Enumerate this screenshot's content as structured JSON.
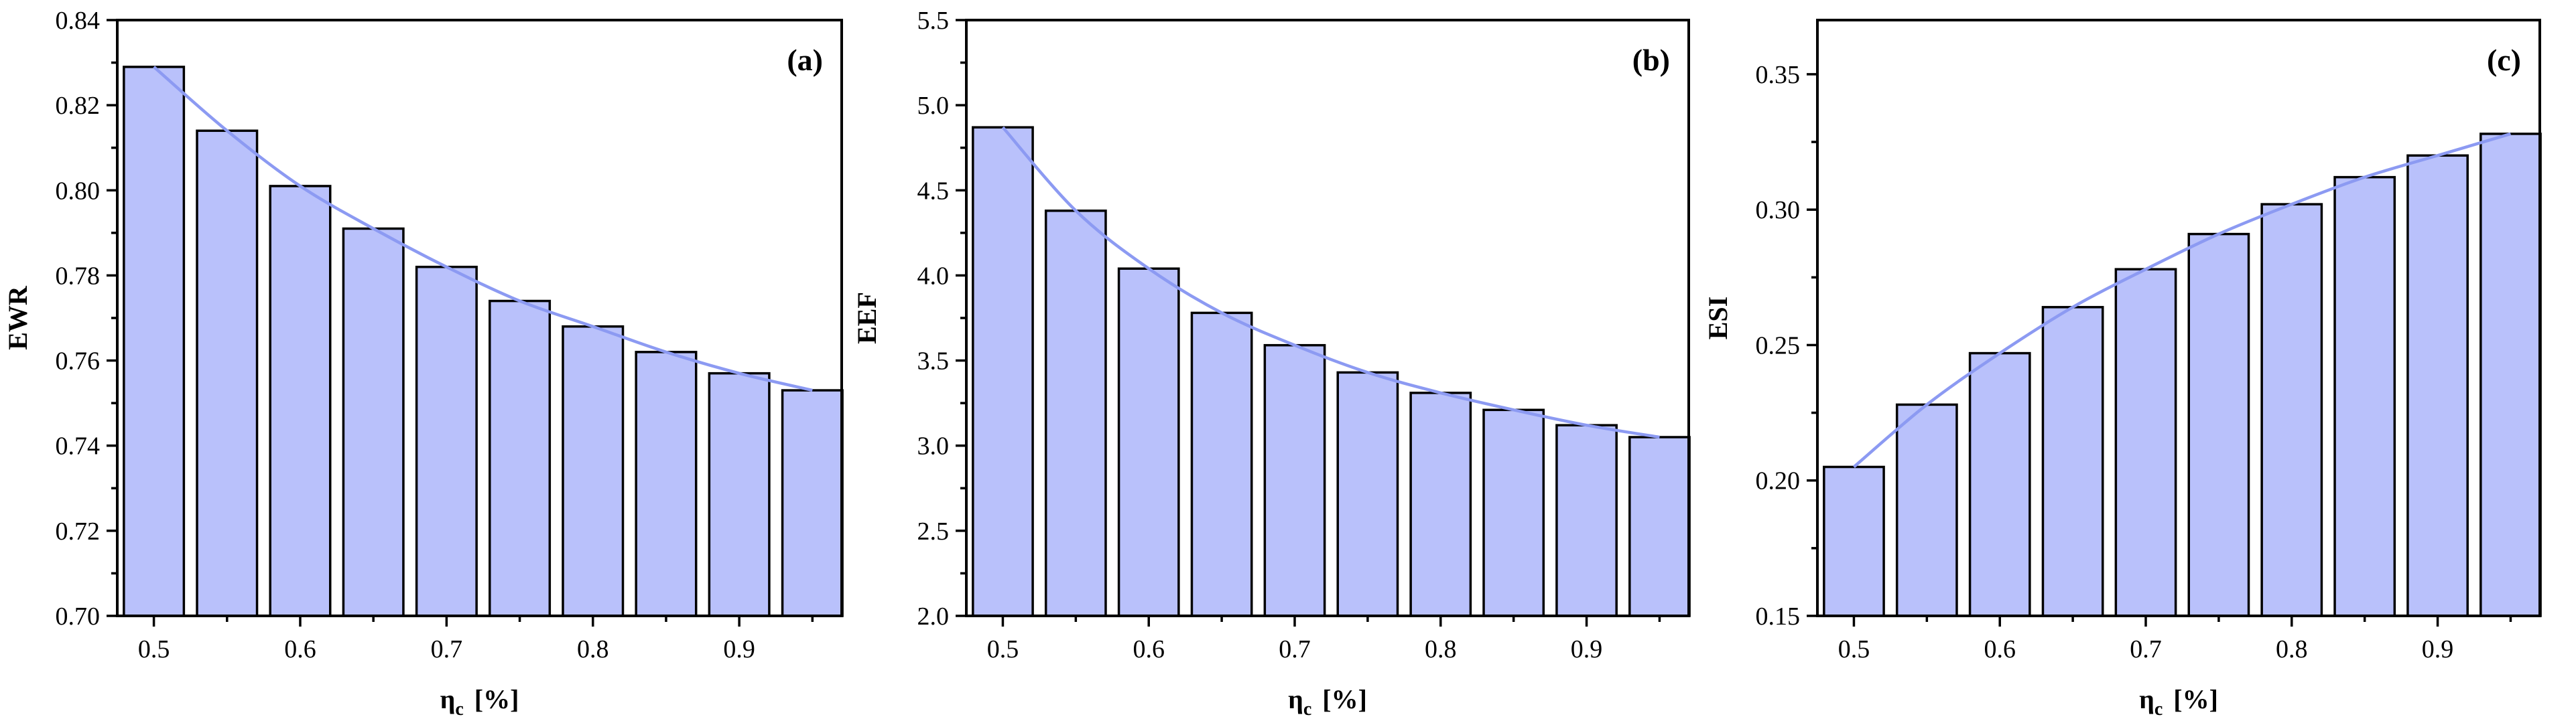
{
  "chart_data": [
    {
      "type": "bar",
      "panel_label": "(a)",
      "xlabel_main": "η",
      "xlabel_sub": "c",
      "xlabel_unit": "[%]",
      "ylabel": "EWR",
      "x": [
        0.5,
        0.55,
        0.6,
        0.65,
        0.7,
        0.75,
        0.8,
        0.85,
        0.9,
        0.95
      ],
      "values": [
        0.829,
        0.814,
        0.801,
        0.791,
        0.782,
        0.774,
        0.768,
        0.762,
        0.757,
        0.753
      ],
      "fit_line": true,
      "xlim": [
        0.475,
        0.97
      ],
      "ylim": [
        0.7,
        0.84
      ],
      "xticks": [
        "0.5",
        "0.6",
        "0.7",
        "0.8",
        "0.9"
      ],
      "yticks": [
        "0.70",
        "0.72",
        "0.74",
        "0.76",
        "0.78",
        "0.80",
        "0.82",
        "0.84"
      ],
      "grid": false,
      "bar_color": "#b9c1fb",
      "line_color": "#8c9af2"
    },
    {
      "type": "bar",
      "panel_label": "(b)",
      "xlabel_main": "η",
      "xlabel_sub": "c",
      "xlabel_unit": "[%]",
      "ylabel": "EEF",
      "x": [
        0.5,
        0.55,
        0.6,
        0.65,
        0.7,
        0.75,
        0.8,
        0.85,
        0.9,
        0.95
      ],
      "values": [
        4.87,
        4.38,
        4.04,
        3.78,
        3.59,
        3.43,
        3.31,
        3.21,
        3.12,
        3.05
      ],
      "fit_line": true,
      "xlim": [
        0.475,
        0.97
      ],
      "ylim": [
        2.0,
        5.5
      ],
      "xticks": [
        "0.5",
        "0.6",
        "0.7",
        "0.8",
        "0.9"
      ],
      "yticks": [
        "2.0",
        "2.5",
        "3.0",
        "3.5",
        "4.0",
        "4.5",
        "5.0",
        "5.5"
      ],
      "grid": false,
      "bar_color": "#b9c1fb",
      "line_color": "#8c9af2"
    },
    {
      "type": "bar",
      "panel_label": "(c)",
      "xlabel_main": "η",
      "xlabel_sub": "c",
      "xlabel_unit": "[%]",
      "ylabel": "ESI",
      "x": [
        0.5,
        0.55,
        0.6,
        0.65,
        0.7,
        0.75,
        0.8,
        0.85,
        0.9,
        0.95
      ],
      "values": [
        0.205,
        0.228,
        0.247,
        0.264,
        0.278,
        0.291,
        0.302,
        0.312,
        0.32,
        0.328
      ],
      "fit_line": true,
      "xlim": [
        0.475,
        0.97
      ],
      "ylim": [
        0.15,
        0.37
      ],
      "xticks": [
        "0.5",
        "0.6",
        "0.7",
        "0.8",
        "0.9"
      ],
      "yticks": [
        "0.15",
        "0.20",
        "0.25",
        "0.30",
        "0.35"
      ],
      "grid": false,
      "bar_color": "#b9c1fb",
      "line_color": "#8c9af2"
    }
  ]
}
